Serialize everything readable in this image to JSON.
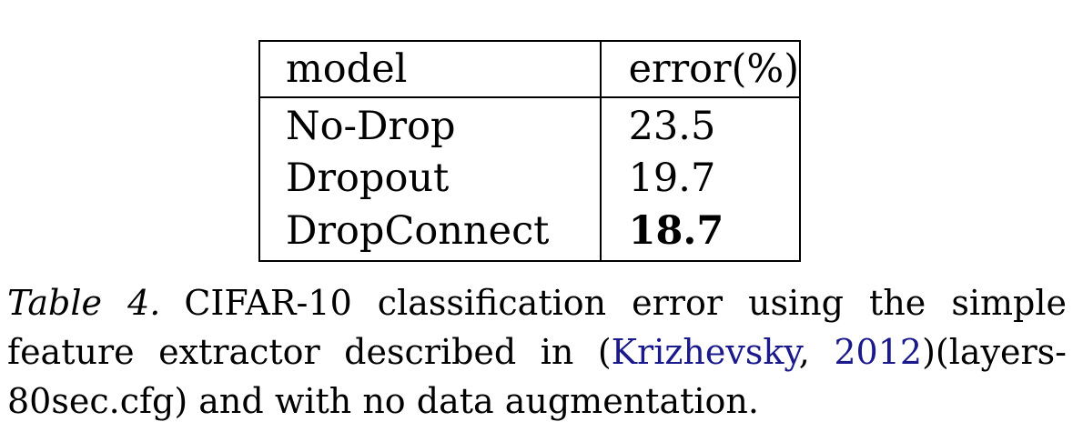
{
  "table": {
    "headers": [
      "model",
      "error(%)"
    ],
    "rows": [
      {
        "model": "No-Drop",
        "error": "23.5"
      },
      {
        "model": "Dropout",
        "error": "19.7"
      },
      {
        "model": "DropConnect",
        "error": "18.7"
      }
    ]
  },
  "caption": {
    "label": "Table 4.",
    "text_before": "CIFAR-10 classification error using the simple feature extractor described in (",
    "cite_author": "Krizhevsky",
    "cite_sep": ", ",
    "cite_year": "2012",
    "text_after": ")(layers-80sec.cfg) and with no data augmentation."
  },
  "colors": {
    "text": "#000000",
    "citation": "#1a1a8c"
  }
}
